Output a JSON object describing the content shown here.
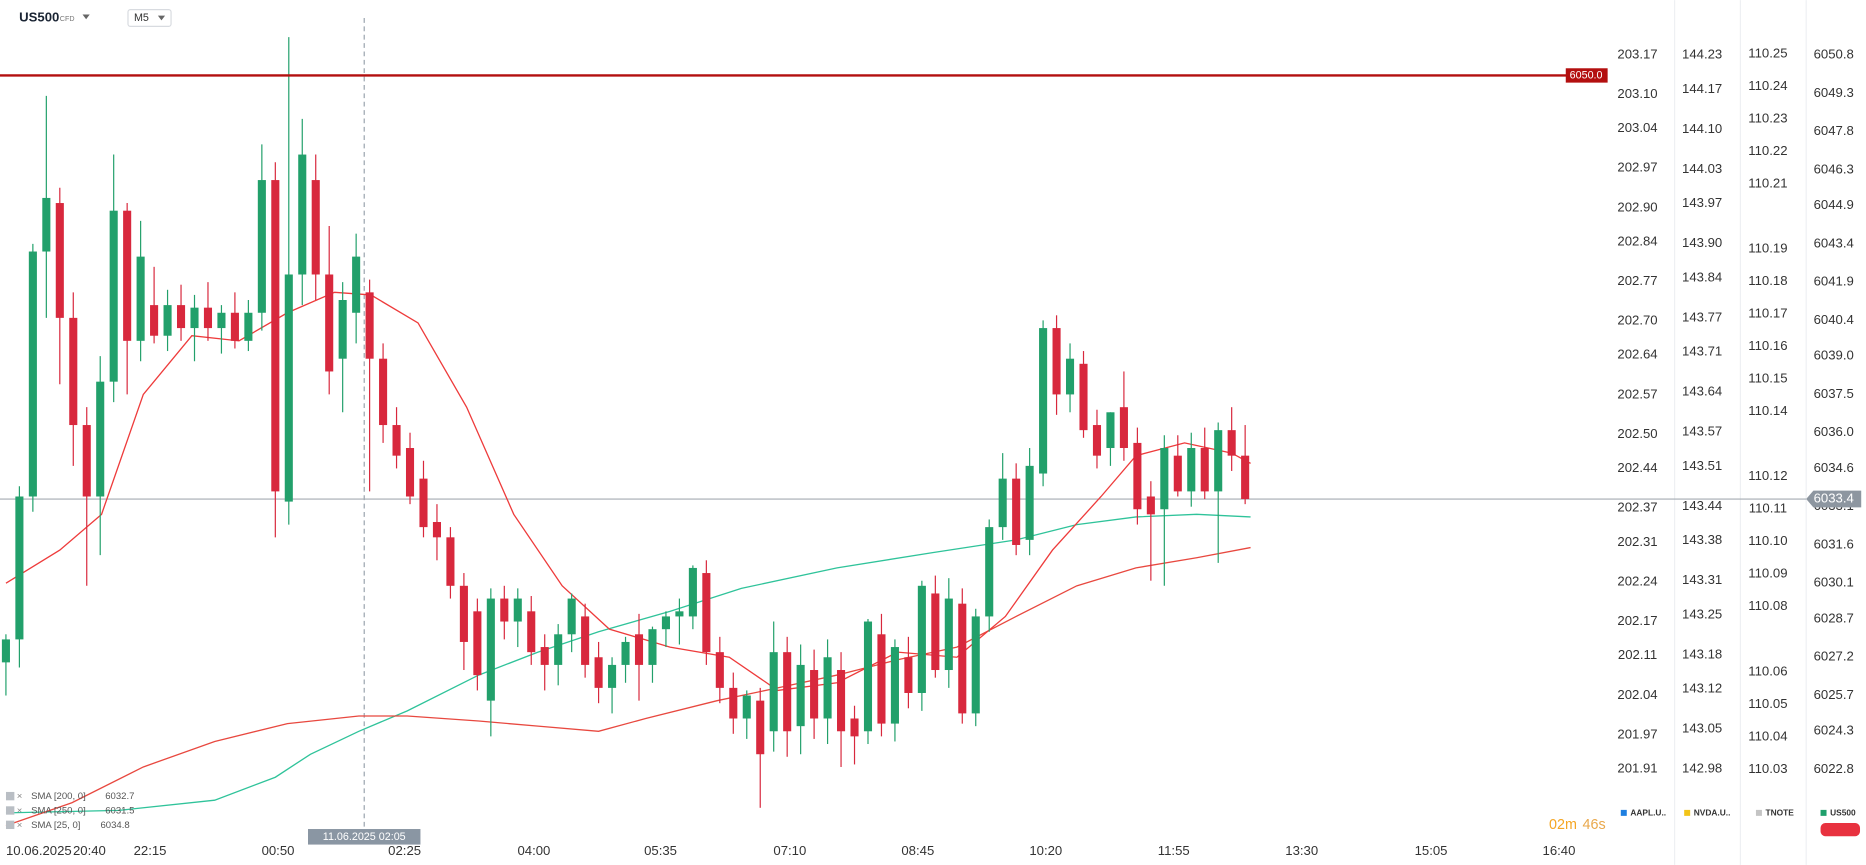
{
  "header": {
    "symbol": "US500",
    "symbol_class": "CFD",
    "timeframe": "M5"
  },
  "footer": {
    "timer_minutes": "02m",
    "timer_seconds": "46s"
  },
  "chart_data": {
    "type": "candlestick",
    "name": "US500",
    "color": "#1fa06c",
    "up_color": "#22a06b",
    "down_color": "#d8283d",
    "x_date_label": "10.06.2025",
    "xlim": [
      -0.44,
      119
    ],
    "xticks": [
      {
        "value": 6.2,
        "label": "20:40"
      },
      {
        "value": 10.7,
        "label": "22:15"
      },
      {
        "value": 20.2,
        "label": "00:50"
      },
      {
        "value": 29.6,
        "label": "02:25"
      },
      {
        "value": 39.2,
        "label": "04:00"
      },
      {
        "value": 48.6,
        "label": "05:35"
      },
      {
        "value": 58.2,
        "label": "07:10"
      },
      {
        "value": 67.7,
        "label": "08:45"
      },
      {
        "value": 77.2,
        "label": "10:20"
      },
      {
        "value": 86.7,
        "label": "11:55"
      },
      {
        "value": 96.2,
        "label": "13:30"
      },
      {
        "value": 105.8,
        "label": "15:05"
      },
      {
        "value": 115.3,
        "label": "16:40"
      }
    ],
    "crosshair": {
      "x": 26.6,
      "label": "11.06.2025 02:05"
    },
    "ylim": [
      6020,
      6052.25
    ],
    "yticks": [
      6050.8,
      6049.3,
      6047.8,
      6046.3,
      6044.9,
      6043.4,
      6041.9,
      6040.4,
      {
        "value": 6039,
        "label": "6039.0"
      },
      6037.5,
      {
        "value": 6036,
        "label": "6036.0"
      },
      6034.6,
      6033.1,
      6031.6,
      6030.1,
      6028.7,
      6027.2,
      6025.7,
      6024.3,
      6022.8
    ],
    "level_line": {
      "value": 6050,
      "label": "6050.0",
      "color": "#b30f0f"
    },
    "last_price": 6033.4,
    "candles": [
      [
        6027.0,
        6028.1,
        6025.7,
        6027.9
      ],
      [
        6027.9,
        6033.9,
        6026.8,
        6033.5
      ],
      [
        6033.5,
        6043.4,
        6032.9,
        6043.1
      ],
      [
        6043.1,
        6049.2,
        6040.5,
        6045.2
      ],
      [
        6045.0,
        6045.6,
        6037.9,
        6040.5
      ],
      [
        6040.5,
        6041.5,
        6034.7,
        6036.3
      ],
      [
        6036.3,
        6037.0,
        6030.0,
        6033.5
      ],
      [
        6033.5,
        6039.0,
        6031.2,
        6038.0
      ],
      [
        6038.0,
        6046.9,
        6037.2,
        6044.7
      ],
      [
        6044.7,
        6045.0,
        6037.5,
        6039.6
      ],
      [
        6039.6,
        6044.3,
        6038.8,
        6042.9
      ],
      [
        6041.0,
        6042.5,
        6039.5,
        6039.8
      ],
      [
        6039.8,
        6041.6,
        6039.2,
        6041.0
      ],
      [
        6041.0,
        6041.8,
        6039.6,
        6040.1
      ],
      [
        6040.1,
        6041.4,
        6038.8,
        6040.9
      ],
      [
        6040.9,
        6041.9,
        6039.6,
        6040.1
      ],
      [
        6040.1,
        6041.0,
        6039.1,
        6040.7
      ],
      [
        6040.7,
        6041.5,
        6039.3,
        6039.6
      ],
      [
        6039.6,
        6041.2,
        6039.2,
        6040.7
      ],
      [
        6040.7,
        6047.3,
        6040.0,
        6045.9
      ],
      [
        6045.9,
        6046.6,
        6031.9,
        6033.7
      ],
      [
        6033.3,
        6051.5,
        6032.4,
        6042.2
      ],
      [
        6042.2,
        6048.3,
        6041.0,
        6046.9
      ],
      [
        6045.9,
        6046.9,
        6041.2,
        6042.2
      ],
      [
        6042.2,
        6044.1,
        6037.5,
        6038.4
      ],
      [
        6038.9,
        6041.9,
        6036.8,
        6041.2
      ],
      [
        6040.7,
        6043.8,
        6039.5,
        6042.9
      ],
      [
        6041.5,
        6042.0,
        6033.7,
        6038.9
      ],
      [
        6038.9,
        6039.5,
        6035.6,
        6036.3
      ],
      [
        6036.3,
        6037.0,
        6034.6,
        6035.1
      ],
      [
        6035.4,
        6036.0,
        6033.2,
        6033.5
      ],
      [
        6034.2,
        6034.9,
        6031.9,
        6032.3
      ],
      [
        6032.5,
        6033.2,
        6031.0,
        6031.9
      ],
      [
        6031.9,
        6032.3,
        6029.5,
        6030.0
      ],
      [
        6030.0,
        6030.5,
        6026.7,
        6027.8
      ],
      [
        6029.0,
        6029.5,
        6025.9,
        6026.5
      ],
      [
        6025.5,
        6029.9,
        6024.1,
        6029.5
      ],
      [
        6029.5,
        6030.0,
        6027.9,
        6028.6
      ],
      [
        6028.6,
        6029.9,
        6027.6,
        6029.5
      ],
      [
        6029.0,
        6029.6,
        6026.9,
        6027.4
      ],
      [
        6027.6,
        6028.1,
        6025.9,
        6026.9
      ],
      [
        6026.9,
        6028.5,
        6026.1,
        6028.1
      ],
      [
        6028.1,
        6029.7,
        6027.4,
        6029.5
      ],
      [
        6028.8,
        6029.3,
        6026.4,
        6026.9
      ],
      [
        6027.2,
        6027.8,
        6025.4,
        6026.0
      ],
      [
        6026.0,
        6027.2,
        6025.0,
        6026.9
      ],
      [
        6026.9,
        6028.0,
        6026.2,
        6027.8
      ],
      [
        6028.1,
        6028.9,
        6025.5,
        6026.9
      ],
      [
        6026.9,
        6028.4,
        6026.2,
        6028.3
      ],
      [
        6028.3,
        6029.0,
        6027.6,
        6028.8
      ],
      [
        6028.8,
        6029.5,
        6027.7,
        6029.0
      ],
      [
        6028.8,
        6030.8,
        6028.3,
        6030.7
      ],
      [
        6030.5,
        6031.0,
        6026.9,
        6027.4
      ],
      [
        6027.4,
        6028.0,
        6025.4,
        6026.0
      ],
      [
        6026.0,
        6026.6,
        6024.2,
        6024.8
      ],
      [
        6024.8,
        6025.9,
        6024.0,
        6025.7
      ],
      [
        6025.5,
        6026.0,
        6021.3,
        6023.4
      ],
      [
        6024.3,
        6028.6,
        6023.5,
        6027.4
      ],
      [
        6027.4,
        6028.0,
        6023.3,
        6024.3
      ],
      [
        6024.5,
        6027.7,
        6023.4,
        6026.9
      ],
      [
        6026.7,
        6027.5,
        6024.0,
        6024.8
      ],
      [
        6024.8,
        6027.9,
        6023.8,
        6027.2
      ],
      [
        6026.7,
        6027.4,
        6022.9,
        6024.3
      ],
      [
        6024.8,
        6025.3,
        6023.0,
        6024.1
      ],
      [
        6024.3,
        6028.7,
        6023.8,
        6028.6
      ],
      [
        6028.1,
        6028.9,
        6024.1,
        6024.6
      ],
      [
        6024.6,
        6027.9,
        6023.9,
        6027.6
      ],
      [
        6027.2,
        6028.0,
        6025.2,
        6025.8
      ],
      [
        6025.8,
        6030.2,
        6025.1,
        6030.0
      ],
      [
        6029.7,
        6030.4,
        6026.4,
        6026.7
      ],
      [
        6026.7,
        6030.3,
        6026.0,
        6029.5
      ],
      [
        6029.3,
        6029.9,
        6024.6,
        6025.0
      ],
      [
        6025.0,
        6029.1,
        6024.5,
        6028.8
      ],
      [
        6028.8,
        6032.6,
        6028.2,
        6032.3
      ],
      [
        6032.3,
        6035.2,
        6031.8,
        6034.2
      ],
      [
        6034.2,
        6034.8,
        6031.2,
        6031.6
      ],
      [
        6031.8,
        6035.4,
        6031.2,
        6034.7
      ],
      [
        6034.4,
        6040.4,
        6033.9,
        6040.1
      ],
      [
        6040.1,
        6040.6,
        6036.7,
        6037.5
      ],
      [
        6037.5,
        6039.5,
        6036.8,
        6038.9
      ],
      [
        6038.7,
        6039.2,
        6035.8,
        6036.1
      ],
      [
        6036.3,
        6036.9,
        6034.6,
        6035.1
      ],
      [
        6035.4,
        6036.8,
        6034.7,
        6036.8
      ],
      [
        6037.0,
        6038.4,
        6034.9,
        6035.4
      ],
      [
        6035.6,
        6036.2,
        6032.4,
        6033.0
      ],
      [
        6033.5,
        6034.1,
        6030.2,
        6032.8
      ],
      [
        6033.0,
        6035.9,
        6030.0,
        6035.4
      ],
      [
        6035.1,
        6035.9,
        6033.5,
        6033.7
      ],
      [
        6033.7,
        6036.0,
        6033.1,
        6035.4
      ],
      [
        6035.4,
        6036.2,
        6033.4,
        6033.7
      ],
      [
        6033.7,
        6036.4,
        6030.9,
        6036.1
      ],
      [
        6036.1,
        6037.0,
        6034.5,
        6035.1
      ],
      [
        6035.1,
        6036.3,
        6033.2,
        6033.4
      ]
    ],
    "series": [
      {
        "name": "SMA [200, 0]",
        "last": 6032.7,
        "color": "#2fc39a",
        "x": [
          0,
          8.4,
          15.5,
          20.0,
          22.6,
          26.2,
          29.8,
          35.1,
          39.5,
          44.0,
          49.3,
          54.6,
          61.7,
          68.8,
          75.0,
          79.5,
          83.9,
          88.4,
          92.4
        ],
        "values": [
          6021.1,
          6021.2,
          6021.6,
          6022.5,
          6023.4,
          6024.3,
          6025.1,
          6026.5,
          6027.4,
          6028.2,
          6029.0,
          6029.9,
          6030.7,
          6031.3,
          6031.8,
          6032.4,
          6032.7,
          6032.8,
          6032.7
        ]
      },
      {
        "name": "SMA [250, 0]",
        "last": 6031.5,
        "color": "#e8483f",
        "x": [
          0,
          4.9,
          10.2,
          15.5,
          20.9,
          26.2,
          29.8,
          35.1,
          39.5,
          44.0,
          47.5,
          52.8,
          57.3,
          61.7,
          66.2,
          70.6,
          75.0,
          79.5,
          83.9,
          88.4,
          92.4
        ],
        "values": [
          6020.6,
          6021.5,
          6022.9,
          6023.9,
          6024.6,
          6024.9,
          6024.9,
          6024.7,
          6024.5,
          6024.3,
          6024.8,
          6025.5,
          6026.0,
          6026.5,
          6027.1,
          6027.6,
          6028.8,
          6030.0,
          6030.7,
          6031.1,
          6031.5
        ]
      },
      {
        "name": "SMA [25, 0]",
        "last": 6034.8,
        "color": "#ee3b3b",
        "x": [
          0,
          4.0,
          7.1,
          10.2,
          13.8,
          17.3,
          20.9,
          24.4,
          27.1,
          30.6,
          34.2,
          37.7,
          41.3,
          44.8,
          49.3,
          53.7,
          57.3,
          61.7,
          66.2,
          70.6,
          74.2,
          77.7,
          81.3,
          83.9,
          87.5,
          91.0,
          92.4
        ],
        "values": [
          6030.1,
          6031.4,
          6032.8,
          6037.5,
          6039.8,
          6039.6,
          6040.7,
          6041.5,
          6041.4,
          6040.3,
          6037.0,
          6032.8,
          6030.0,
          6028.3,
          6027.6,
          6027.2,
          6025.9,
          6026.2,
          6027.4,
          6027.2,
          6028.8,
          6031.4,
          6033.5,
          6035.1,
          6035.6,
          6035.2,
          6034.8
        ]
      }
    ],
    "comparison_scales": [
      {
        "name": "AAPL.U..",
        "color": "#1e7fe0",
        "ylim": [
          201.783,
          203.235
        ],
        "yticks": [
          203.17,
          {
            "value": 203.1,
            "label": "203.10"
          },
          203.04,
          202.97,
          {
            "value": 202.9,
            "label": "202.90"
          },
          202.84,
          202.77,
          {
            "value": 202.7,
            "label": "202.70"
          },
          202.64,
          202.57,
          {
            "value": 202.5,
            "label": "202.50"
          },
          202.44,
          202.37,
          202.31,
          202.24,
          202.17,
          202.11,
          202.04,
          201.97,
          201.91
        ]
      },
      {
        "name": "NVDA.U..",
        "color": "#f2c418",
        "ylim": [
          142.854,
          144.295
        ],
        "yticks": [
          144.23,
          144.17,
          {
            "value": 144.1,
            "label": "144.10"
          },
          144.03,
          143.97,
          {
            "value": 143.9,
            "label": "143.90"
          },
          143.84,
          143.77,
          143.71,
          143.64,
          143.57,
          143.51,
          143.44,
          143.38,
          143.31,
          143.25,
          143.18,
          143.12,
          143.05,
          142.98
        ]
      },
      {
        "name": "TNOTE",
        "color": "#c4c4c4",
        "ylim": [
          110.008,
          110.261
        ],
        "yticks": [
          110.25,
          110.24,
          110.23,
          110.22,
          110.21,
          110.19,
          110.18,
          110.17,
          110.16,
          110.15,
          110.14,
          110.12,
          110.11,
          {
            "value": 110.1,
            "label": "110.10"
          },
          110.09,
          110.08,
          110.06,
          110.05,
          110.04,
          110.03
        ]
      }
    ]
  }
}
